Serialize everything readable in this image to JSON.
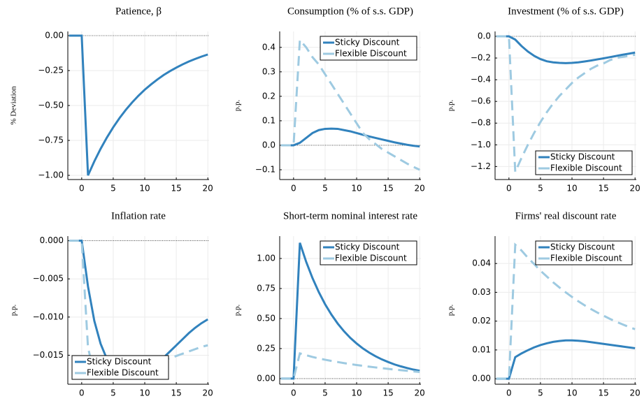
{
  "chart_data": [
    {
      "type": "line",
      "title": "Patience, β",
      "ylabel": "% Deviation",
      "x": [
        -2,
        -1,
        0,
        1,
        2,
        3,
        4,
        5,
        6,
        7,
        8,
        9,
        10,
        11,
        12,
        13,
        14,
        15,
        16,
        17,
        18,
        19,
        20
      ],
      "xlim": [
        -2.2,
        20.2
      ],
      "xticks": [
        0,
        5,
        10,
        15,
        20
      ],
      "ylim": [
        -1.03,
        0.03
      ],
      "yticks": [
        {
          "value": 0,
          "label": "0.00"
        },
        {
          "value": -0.25,
          "label": "−0.25"
        },
        {
          "value": -0.5,
          "label": "−0.50"
        },
        {
          "value": -0.75,
          "label": "−0.75"
        },
        {
          "value": -1,
          "label": "−1.00"
        }
      ],
      "grid": true,
      "hline": 0,
      "series": [
        {
          "name": "Sticky Discount",
          "color": "#3182bd",
          "style": "solid",
          "values": [
            0,
            0,
            0,
            -1,
            -0.9,
            -0.81,
            -0.729,
            -0.656,
            -0.59,
            -0.531,
            -0.478,
            -0.43,
            -0.387,
            -0.349,
            -0.314,
            -0.282,
            -0.254,
            -0.229,
            -0.206,
            -0.185,
            -0.167,
            -0.15,
            -0.135
          ]
        }
      ]
    },
    {
      "type": "line",
      "title": "Consumption (% of s.s. GDP)",
      "ylabel": "p.p.",
      "x": [
        -2,
        -1,
        0,
        1,
        2,
        3,
        4,
        5,
        6,
        7,
        8,
        9,
        10,
        11,
        12,
        13,
        14,
        15,
        16,
        17,
        18,
        19,
        20
      ],
      "xlim": [
        -2.2,
        20.2
      ],
      "xticks": [
        0,
        5,
        10,
        15,
        20
      ],
      "ylim": [
        -0.14,
        0.465
      ],
      "yticks": [
        {
          "value": -0.1,
          "label": "−0.1"
        },
        {
          "value": 0,
          "label": "0.0"
        },
        0.1,
        0.2,
        0.3,
        0.4
      ],
      "grid": true,
      "hline": 0,
      "legend": "top right",
      "series": [
        {
          "name": "Sticky Discount",
          "color": "#3182bd",
          "style": "solid",
          "values": [
            0,
            0,
            0,
            0.01,
            0.03,
            0.05,
            0.062,
            0.067,
            0.068,
            0.067,
            0.062,
            0.057,
            0.05,
            0.043,
            0.036,
            0.03,
            0.024,
            0.018,
            0.012,
            0.007,
            0.002,
            -0.002,
            -0.005
          ]
        },
        {
          "name": "Flexible Discount",
          "color": "#9ecae1",
          "style": "dashed",
          "values": [
            0,
            0,
            0,
            0.43,
            0.4,
            0.36,
            0.33,
            0.29,
            0.25,
            0.21,
            0.17,
            0.13,
            0.09,
            0.05,
            0.025,
            0.005,
            -0.015,
            -0.03,
            -0.045,
            -0.06,
            -0.075,
            -0.088,
            -0.1
          ]
        }
      ]
    },
    {
      "type": "line",
      "title": "Investment (% of s.s. GDP)",
      "ylabel": "p.p.",
      "x": [
        -2,
        -1,
        0,
        1,
        2,
        3,
        4,
        5,
        6,
        7,
        8,
        9,
        10,
        11,
        12,
        13,
        14,
        15,
        16,
        17,
        18,
        19,
        20
      ],
      "xlim": [
        -2.2,
        20.2
      ],
      "xticks": [
        0,
        5,
        10,
        15,
        20
      ],
      "ylim": [
        -1.32,
        0.045
      ],
      "yticks": [
        {
          "value": 0,
          "label": "0.0"
        },
        {
          "value": -0.2,
          "label": "−0.2"
        },
        {
          "value": -0.4,
          "label": "−0.4"
        },
        {
          "value": -0.6,
          "label": "−0.6"
        },
        {
          "value": -0.8,
          "label": "−0.8"
        },
        {
          "value": -1,
          "label": "−1.0"
        },
        {
          "value": -1.2,
          "label": "−1.2"
        }
      ],
      "grid": true,
      "hline": 0,
      "legend": "bottom right",
      "series": [
        {
          "name": "Sticky Discount",
          "color": "#3182bd",
          "style": "solid",
          "values": [
            0,
            0,
            0,
            -0.03,
            -0.09,
            -0.14,
            -0.18,
            -0.21,
            -0.23,
            -0.24,
            -0.245,
            -0.247,
            -0.245,
            -0.24,
            -0.232,
            -0.223,
            -0.213,
            -0.203,
            -0.192,
            -0.181,
            -0.17,
            -0.16,
            -0.15
          ]
        },
        {
          "name": "Flexible Discount",
          "color": "#9ecae1",
          "style": "dashed",
          "values": [
            0,
            0,
            0,
            -1.25,
            -1.12,
            -1,
            -0.89,
            -0.79,
            -0.7,
            -0.62,
            -0.55,
            -0.49,
            -0.43,
            -0.38,
            -0.34,
            -0.3,
            -0.27,
            -0.25,
            -0.22,
            -0.2,
            -0.19,
            -0.18,
            -0.17
          ]
        }
      ]
    },
    {
      "type": "line",
      "title": "Inflation rate",
      "ylabel": "p.p.",
      "x": [
        -2,
        -1,
        0,
        1,
        2,
        3,
        4,
        5,
        6,
        7,
        8,
        9,
        10,
        11,
        12,
        13,
        14,
        15,
        16,
        17,
        18,
        19,
        20
      ],
      "xlim": [
        -2.2,
        20.2
      ],
      "xticks": [
        0,
        5,
        10,
        15,
        20
      ],
      "ylim": [
        -0.0188,
        0.0006
      ],
      "yticks": [
        {
          "value": 0,
          "label": "0.000"
        },
        {
          "value": -0.005,
          "label": "−0.005"
        },
        {
          "value": -0.01,
          "label": "−0.010"
        },
        {
          "value": -0.015,
          "label": "−0.015"
        }
      ],
      "grid": true,
      "hline": 0,
      "legend": "bottom left",
      "series": [
        {
          "name": "Sticky Discount",
          "color": "#3182bd",
          "style": "solid",
          "values": [
            0,
            0,
            0,
            -0.006,
            -0.0105,
            -0.0135,
            -0.0155,
            -0.0168,
            -0.0175,
            -0.0179,
            -0.018,
            -0.0178,
            -0.0174,
            -0.0168,
            -0.0161,
            -0.0153,
            -0.0145,
            -0.0137,
            -0.0129,
            -0.0121,
            -0.0114,
            -0.0108,
            -0.0103
          ]
        },
        {
          "name": "Flexible Discount",
          "color": "#9ecae1",
          "style": "dashed",
          "values": [
            0,
            0,
            0,
            -0.014,
            -0.0175,
            -0.0178,
            -0.0176,
            -0.0173,
            -0.017,
            -0.0167,
            -0.0165,
            -0.0163,
            -0.0161,
            -0.016,
            -0.0158,
            -0.0156,
            -0.0154,
            -0.0151,
            -0.0148,
            -0.0145,
            -0.0142,
            -0.0139,
            -0.0137
          ]
        }
      ]
    },
    {
      "type": "line",
      "title": "Short-term nominal interest rate",
      "ylabel": "p.p.",
      "x": [
        -2,
        -1,
        0,
        1,
        2,
        3,
        4,
        5,
        6,
        7,
        8,
        9,
        10,
        11,
        12,
        13,
        14,
        15,
        16,
        17,
        18,
        19,
        20
      ],
      "xlim": [
        -2.2,
        20.2
      ],
      "xticks": [
        0,
        5,
        10,
        15,
        20
      ],
      "ylim": [
        -0.047,
        1.186
      ],
      "yticks": [
        {
          "value": 0,
          "label": "0.00"
        },
        0.25,
        {
          "value": 0.5,
          "label": "0.50"
        },
        0.75,
        {
          "value": 1,
          "label": "1.00"
        }
      ],
      "grid": true,
      "hline": 0,
      "legend": "top right",
      "series": [
        {
          "name": "Sticky Discount",
          "color": "#3182bd",
          "style": "solid",
          "values": [
            0,
            0,
            0,
            1.13,
            0.972,
            0.837,
            0.72,
            0.619,
            0.533,
            0.458,
            0.394,
            0.339,
            0.292,
            0.251,
            0.216,
            0.186,
            0.16,
            0.138,
            0.118,
            0.102,
            0.088,
            0.075,
            0.065
          ]
        },
        {
          "name": "Flexible Discount",
          "color": "#9ecae1",
          "style": "dashed",
          "values": [
            0,
            0,
            0,
            0.21,
            0.195,
            0.18,
            0.168,
            0.157,
            0.147,
            0.138,
            0.129,
            0.121,
            0.113,
            0.106,
            0.099,
            0.093,
            0.087,
            0.081,
            0.075,
            0.07,
            0.065,
            0.06,
            0.055
          ]
        }
      ]
    },
    {
      "type": "line",
      "title": "Firms' real discount rate",
      "ylabel": "p.p.",
      "x": [
        -2,
        -1,
        0,
        1,
        2,
        3,
        4,
        5,
        6,
        7,
        8,
        9,
        10,
        11,
        12,
        13,
        14,
        15,
        16,
        17,
        18,
        19,
        20
      ],
      "xlim": [
        -2.2,
        20.2
      ],
      "xticks": [
        0,
        5,
        10,
        15,
        20
      ],
      "ylim": [
        -0.0019,
        0.0495
      ],
      "yticks": [
        {
          "value": 0,
          "label": "0.00"
        },
        0.01,
        0.02,
        0.03,
        0.04
      ],
      "grid": true,
      "hline": 0,
      "legend": "top right",
      "series": [
        {
          "name": "Sticky Discount",
          "color": "#3182bd",
          "style": "solid",
          "values": [
            0,
            0,
            0,
            0.0075,
            0.0088,
            0.0099,
            0.0109,
            0.0117,
            0.0123,
            0.0128,
            0.0131,
            0.0133,
            0.0133,
            0.0132,
            0.013,
            0.0127,
            0.0124,
            0.0121,
            0.0118,
            0.0115,
            0.0112,
            0.0109,
            0.0106
          ]
        },
        {
          "name": "Flexible Discount",
          "color": "#9ecae1",
          "style": "dashed",
          "values": [
            0,
            0,
            0,
            0.0465,
            0.0445,
            0.042,
            0.0398,
            0.0375,
            0.0355,
            0.0335,
            0.0317,
            0.03,
            0.0284,
            0.0269,
            0.0255,
            0.0242,
            0.023,
            0.0219,
            0.0208,
            0.0198,
            0.0189,
            0.018,
            0.0172
          ]
        }
      ]
    }
  ]
}
